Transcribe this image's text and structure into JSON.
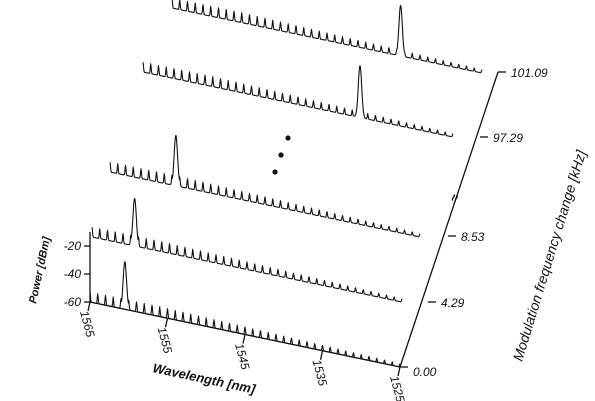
{
  "chart_data": {
    "type": "line",
    "title": "",
    "xlabel": "Wavelength [nm]",
    "ylabel": "Power [dBm]",
    "zlabel": "Modulation frequency change [kHz]",
    "x_ticks": [
      "1565",
      "1555",
      "1545",
      "1535",
      "1525"
    ],
    "xlim": [
      1565,
      1525
    ],
    "y_ticks": [
      "-20",
      "-40",
      "-60"
    ],
    "ylim": [
      -60,
      -10
    ],
    "z_ticks": [
      "0.00",
      "4.29",
      "8.53",
      "97.29",
      "101.09"
    ],
    "axis_break_symbol": "≈",
    "series": [
      {
        "z": "0.00",
        "peak_wavelength": 1560.5,
        "peak_power": -26
      },
      {
        "z": "4.29",
        "peak_wavelength": 1559.5,
        "peak_power": -26
      },
      {
        "z": "8.53",
        "peak_wavelength": 1556.5,
        "peak_power": -24
      },
      {
        "z": "97.29",
        "peak_wavelength": 1537.0,
        "peak_power": -23
      },
      {
        "z": "101.09",
        "peak_wavelength": 1535.5,
        "peak_power": -24
      }
    ],
    "mode_spacing_nm": 1.0,
    "comb_power": -53
  }
}
